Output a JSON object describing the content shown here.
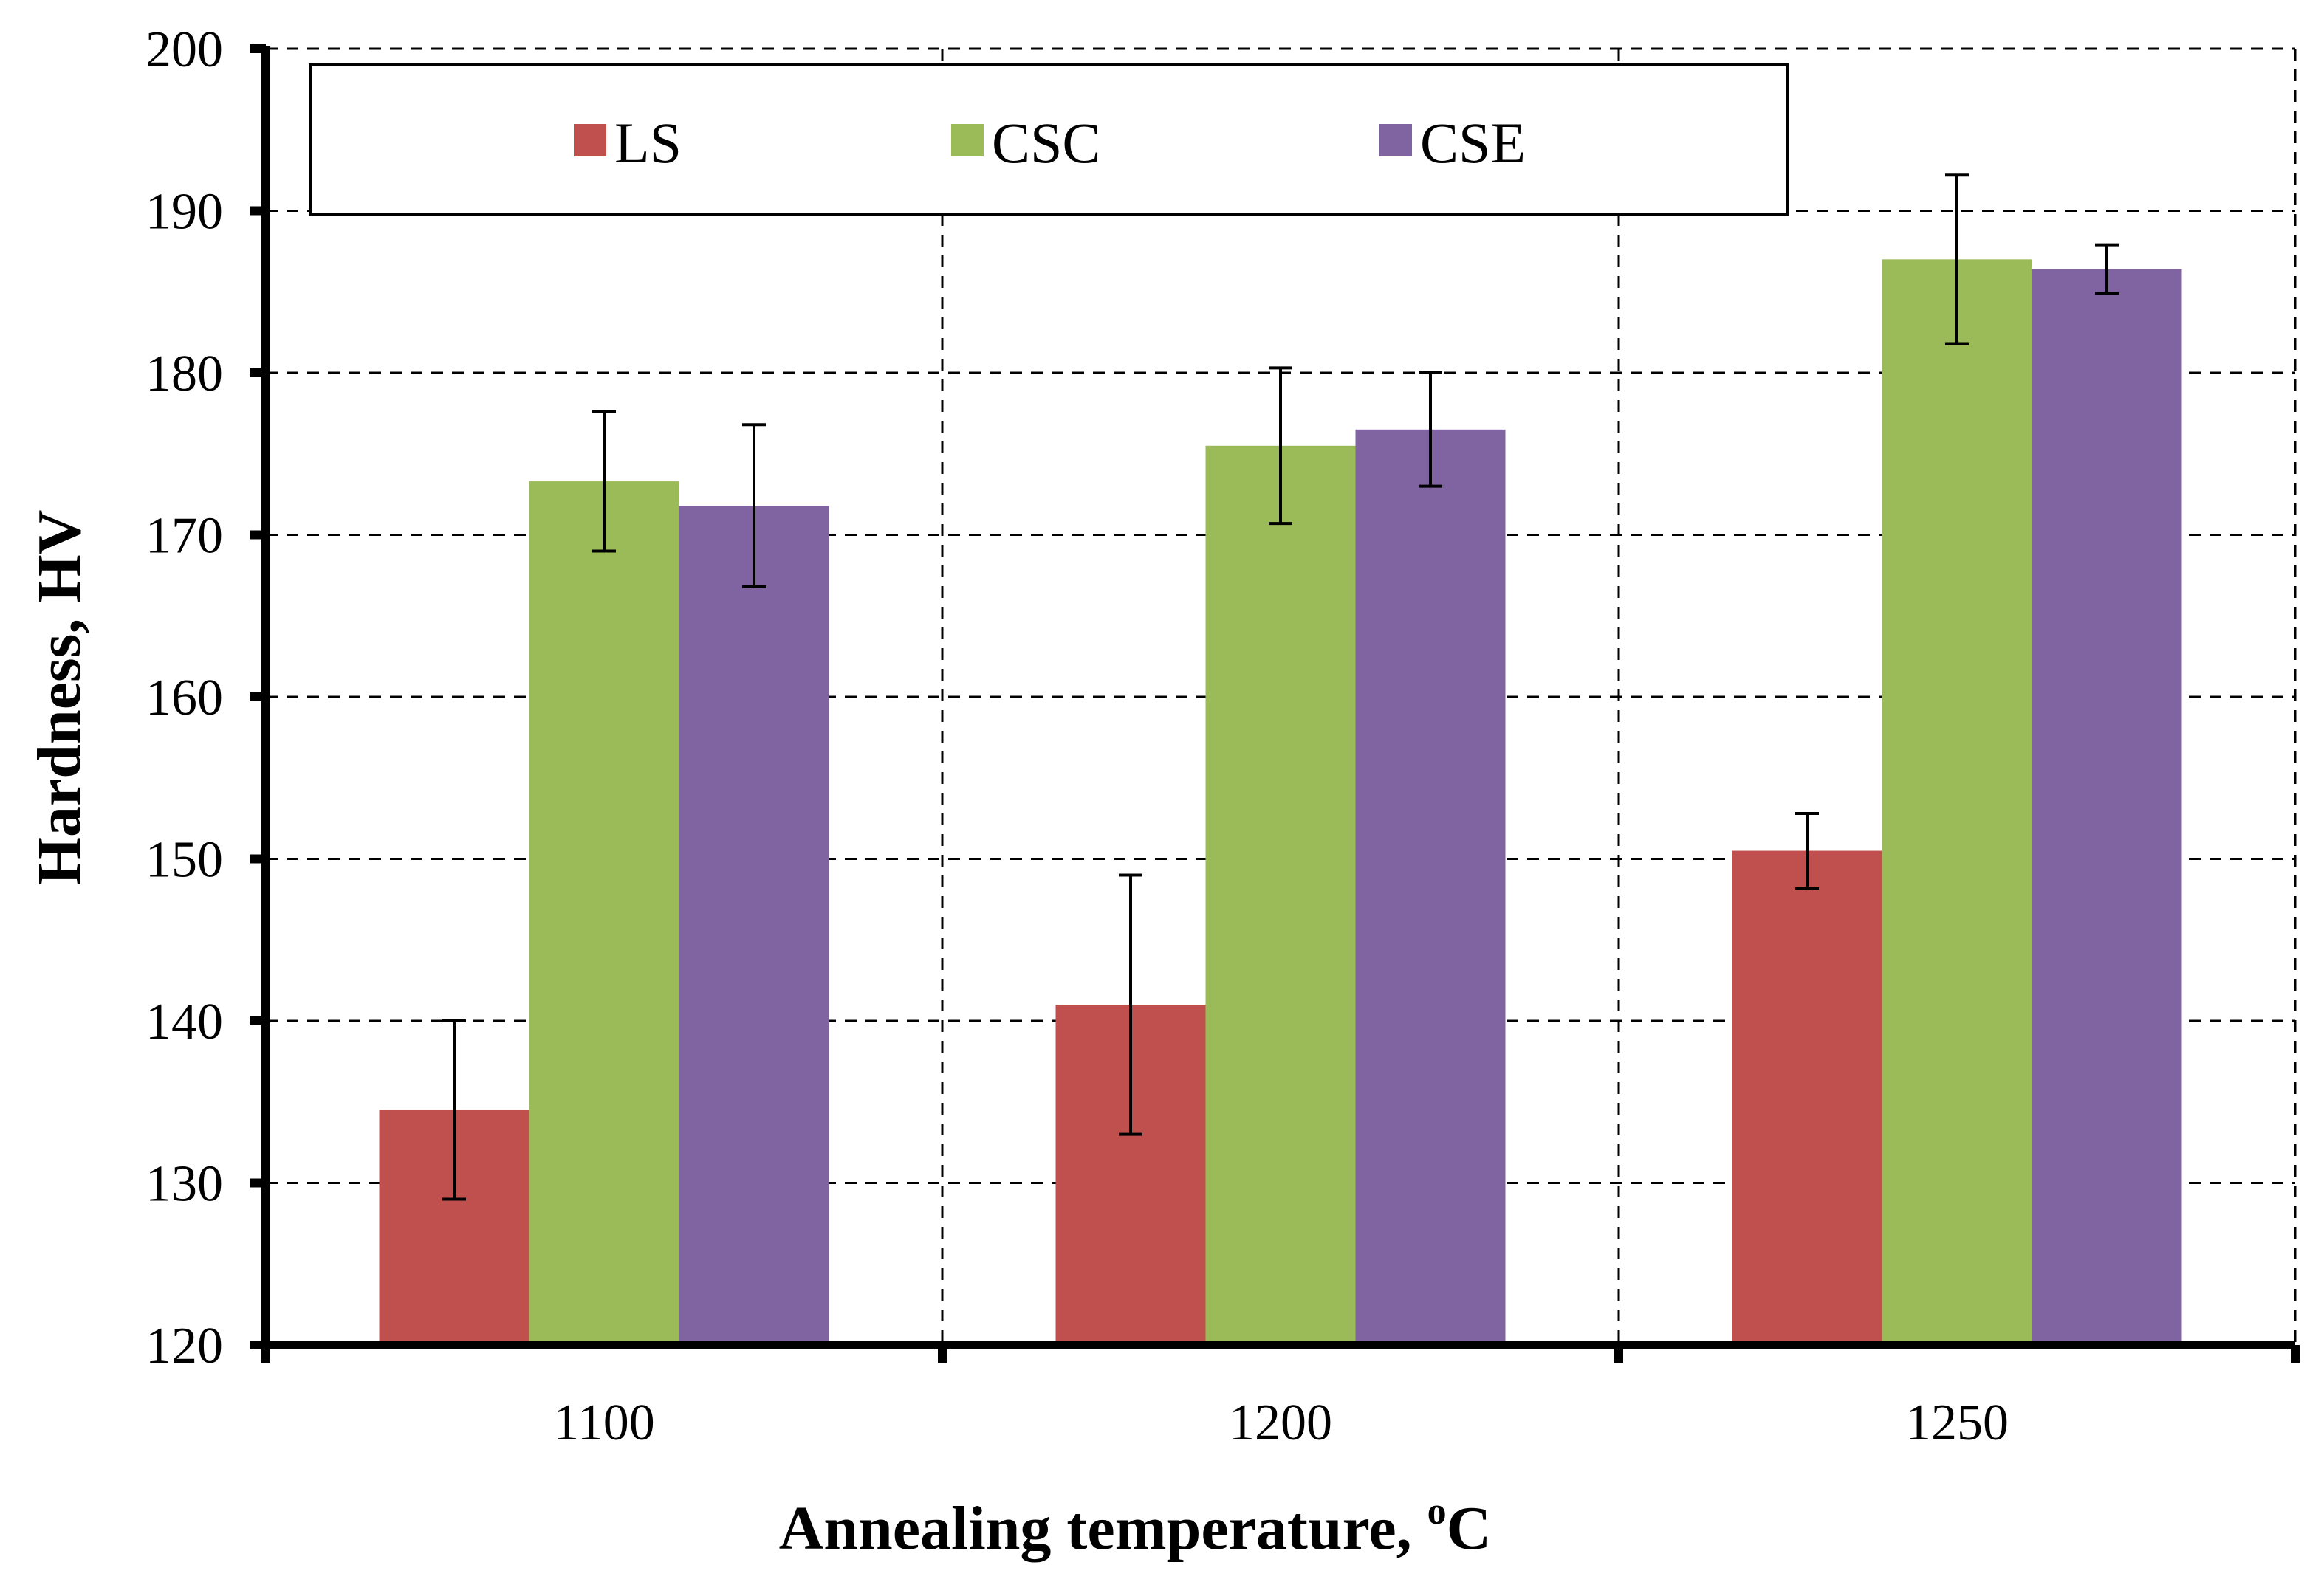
{
  "chart_data": {
    "type": "bar",
    "title": "",
    "xlabel": "Annealing temperature, °C",
    "xlabel_main": "Annealing temperature, ",
    "xlabel_sup": "o",
    "xlabel_unit": "C",
    "ylabel": "Hardness, HV",
    "categories": [
      "1100",
      "1200",
      "1250"
    ],
    "ylim": [
      120,
      200
    ],
    "yticks": [
      "120",
      "130",
      "140",
      "150",
      "160",
      "170",
      "180",
      "190",
      "200"
    ],
    "grid": true,
    "legend_position": "top",
    "series": [
      {
        "name": "LS",
        "color": "#c0504d",
        "values": [
          134.5,
          141.0,
          150.5
        ],
        "errors": [
          5.5,
          8.0,
          2.3
        ]
      },
      {
        "name": "CSC",
        "color": "#9bbb59",
        "values": [
          173.3,
          175.5,
          187.0
        ],
        "errors": [
          4.3,
          4.8,
          5.2
        ]
      },
      {
        "name": "CSE",
        "color": "#8064a2",
        "values": [
          171.8,
          176.5,
          186.4
        ],
        "errors": [
          5.0,
          3.5,
          1.5
        ]
      }
    ]
  }
}
